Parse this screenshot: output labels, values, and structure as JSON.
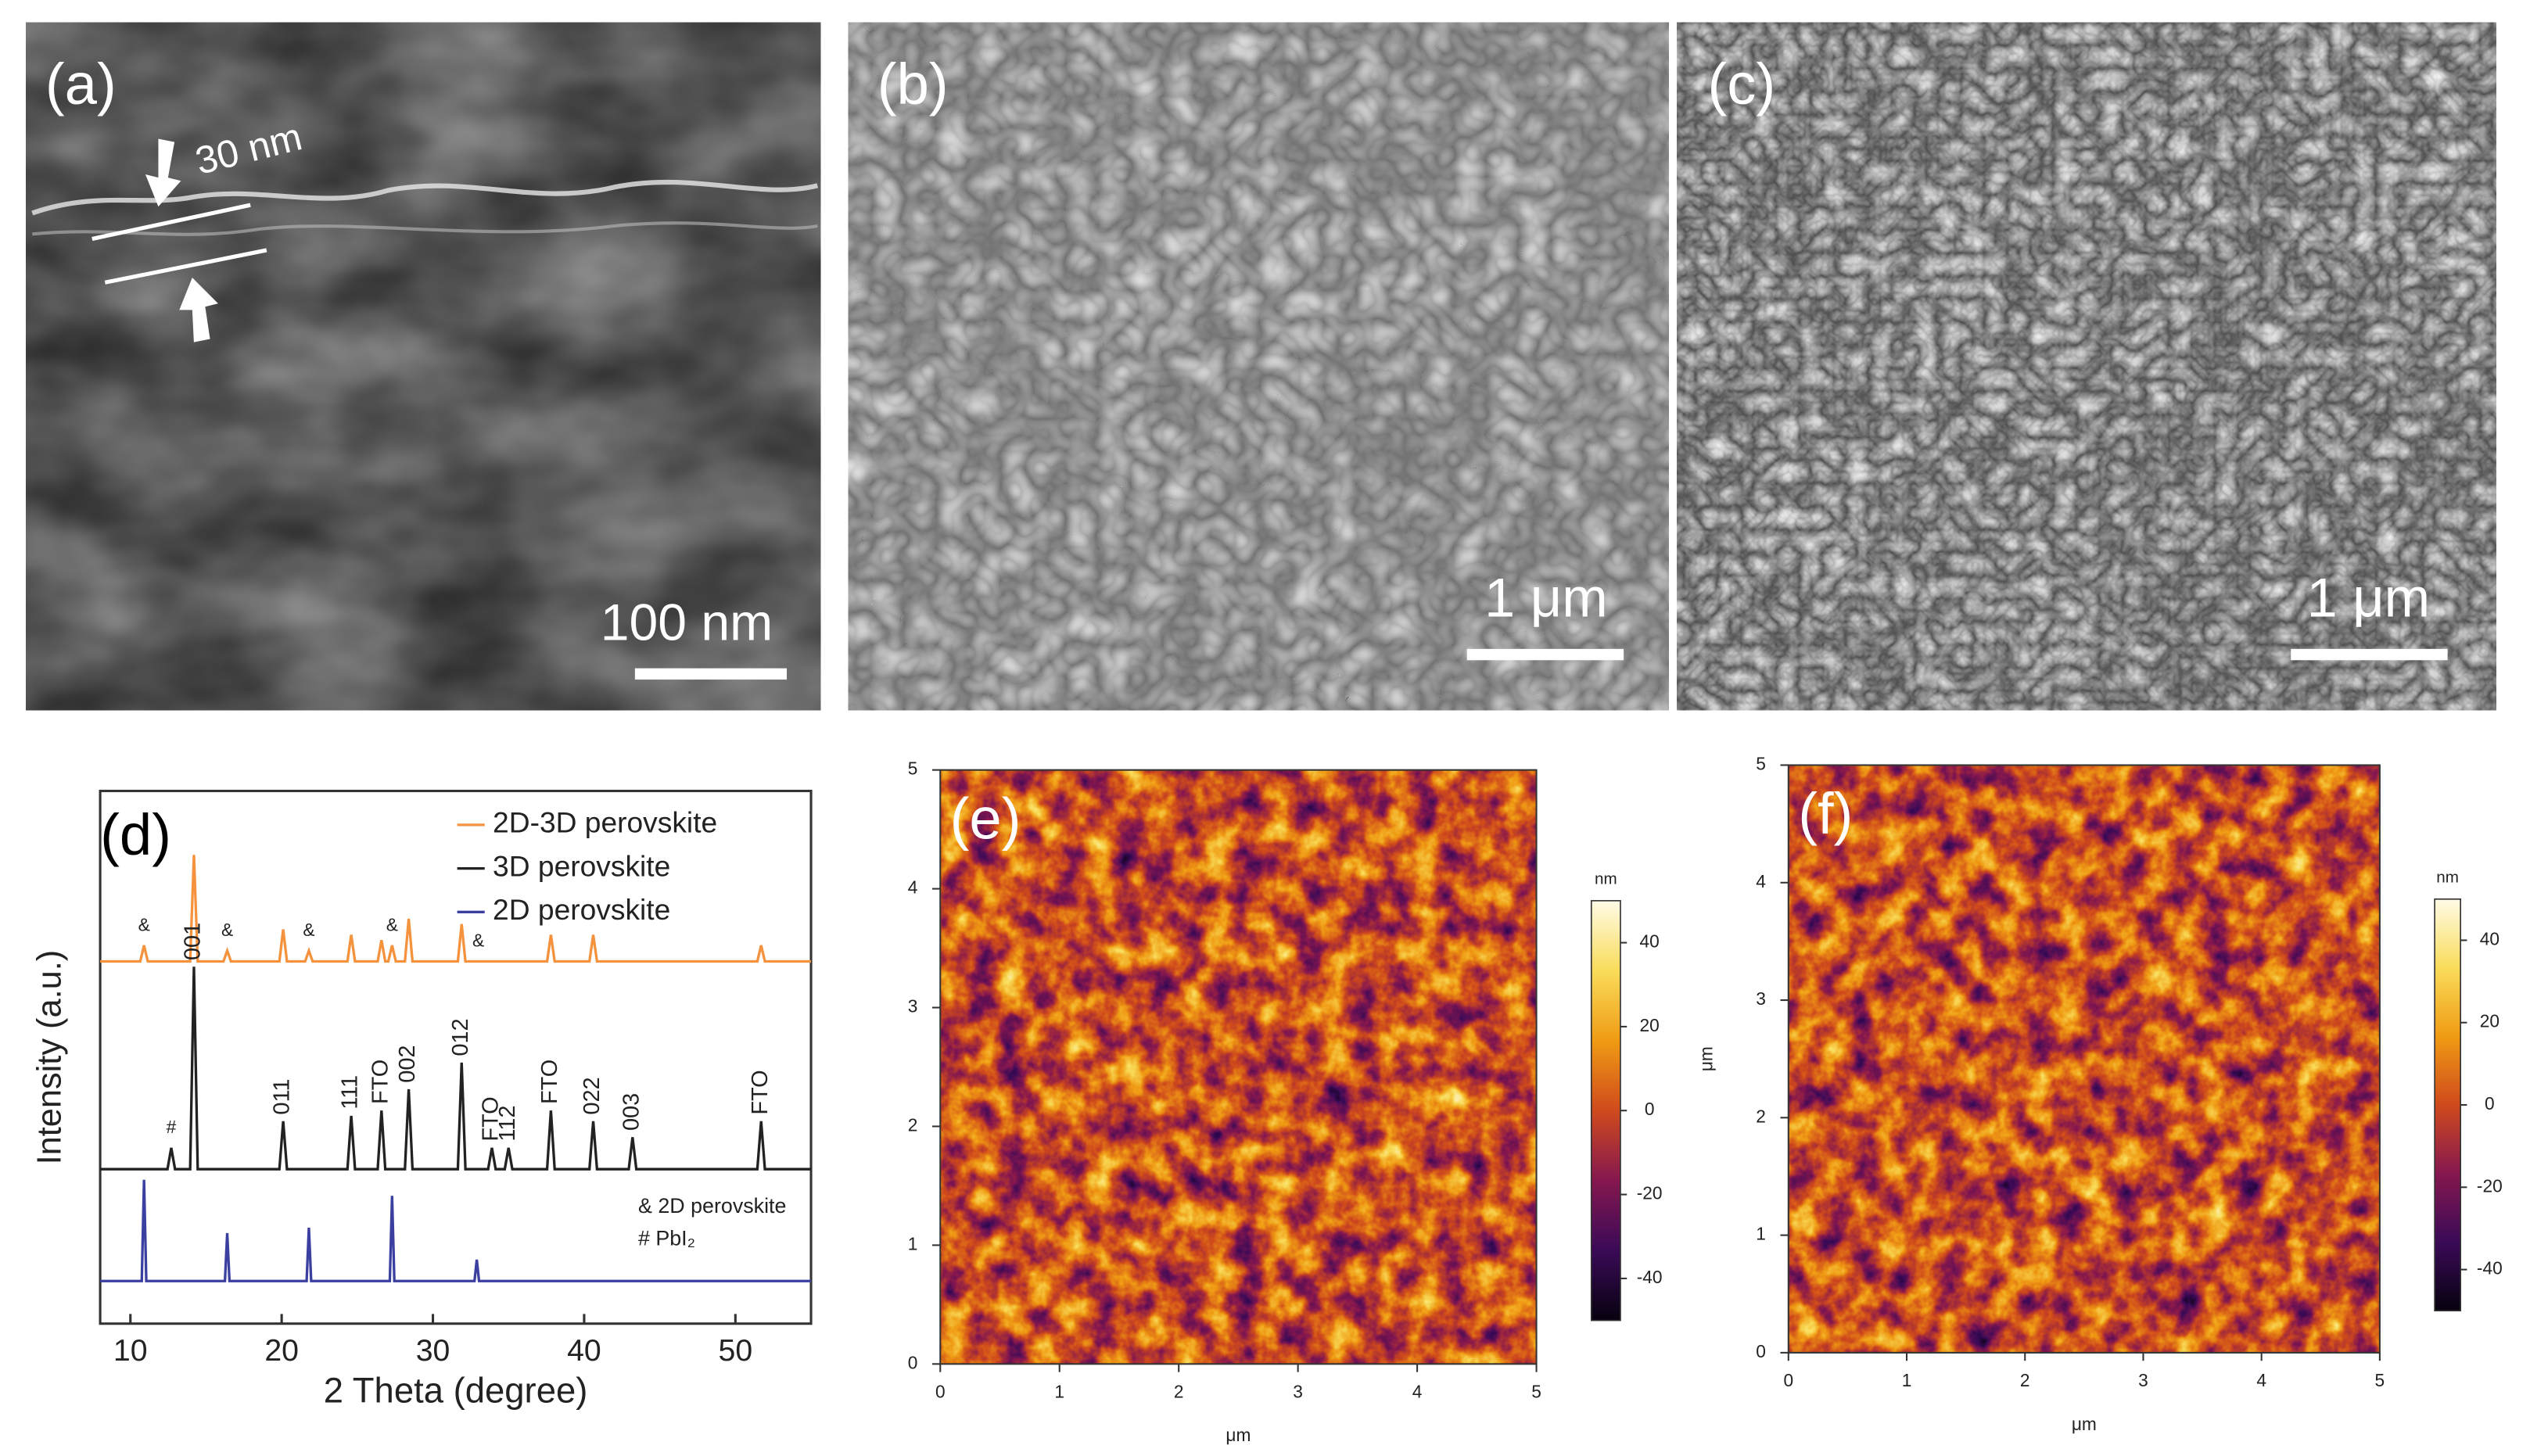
{
  "panels": {
    "a": {
      "label": "(a)",
      "thickness": "30 nm",
      "scale_bar": "100 nm"
    },
    "b": {
      "label": "(b)",
      "scale_bar": "1 μm"
    },
    "c": {
      "label": "(c)",
      "scale_bar": "1 μm"
    }
  },
  "chart_data": [
    {
      "type": "line",
      "panel_label": "(d)",
      "x_label": "2 Theta (degree)",
      "y_label": "Intensity (a.u.)",
      "xlim": [
        8,
        55
      ],
      "xticks": [
        10,
        20,
        30,
        40,
        50
      ],
      "ylim": [
        0,
        100
      ],
      "legend": "upper right",
      "notes": [
        "& 2D perovskite",
        "# PbI₂"
      ],
      "series": [
        {
          "name": "2D-3D perovskite",
          "color": "#f5923e",
          "x": [
            8,
            10.65,
            10.9,
            11.15,
            13.95,
            14.2,
            14.45,
            16.15,
            16.4,
            16.65,
            19.85,
            20.1,
            20.35,
            21.55,
            21.8,
            22.05,
            24.35,
            24.6,
            24.85,
            26.35,
            26.6,
            26.85,
            27.05,
            27.3,
            27.55,
            28.15,
            28.4,
            28.65,
            31.65,
            31.9,
            32.15,
            37.55,
            37.8,
            38.05,
            40.35,
            40.6,
            40.85,
            51.45,
            51.7,
            51.95,
            55
          ],
          "values": [
            68,
            68,
            71,
            68,
            68,
            88,
            68,
            68,
            70,
            68,
            68,
            74,
            68,
            68,
            70,
            68,
            68,
            73,
            68,
            68,
            72,
            68,
            68,
            71,
            68,
            68,
            76,
            68,
            68,
            75,
            68,
            68,
            73,
            68,
            68,
            73,
            68,
            68,
            71,
            68,
            68
          ],
          "peak_labels": [
            {
              "x": 10.9,
              "text": "&"
            },
            {
              "x": 16.4,
              "text": "&"
            },
            {
              "x": 21.8,
              "text": "&"
            },
            {
              "x": 27.3,
              "text": "&"
            },
            {
              "x": 33,
              "text": "&"
            }
          ]
        },
        {
          "name": "3D perovskite",
          "color": "#222222",
          "x": [
            8,
            12.45,
            12.7,
            12.95,
            13.95,
            14.2,
            14.45,
            19.85,
            20.1,
            20.35,
            24.35,
            24.6,
            24.85,
            26.35,
            26.6,
            26.85,
            28.15,
            28.4,
            28.65,
            31.65,
            31.9,
            32.15,
            33.65,
            33.9,
            34.15,
            34.75,
            35.0,
            35.25,
            37.55,
            37.8,
            38.05,
            40.35,
            40.6,
            40.85,
            42.95,
            43.2,
            43.45,
            51.45,
            51.7,
            51.95,
            55
          ],
          "values": [
            29,
            29,
            33,
            29,
            29,
            67,
            29,
            29,
            38,
            29,
            29,
            39,
            29,
            29,
            40,
            29,
            29,
            44,
            29,
            29,
            49,
            29,
            29,
            33,
            29,
            29,
            33,
            29,
            29,
            40,
            29,
            29,
            38,
            29,
            29,
            35,
            29,
            29,
            38,
            29,
            29
          ],
          "peak_labels": [
            {
              "x": 12.7,
              "text": "#"
            },
            {
              "x": 14.2,
              "text": "001"
            },
            {
              "x": 20.1,
              "text": "011"
            },
            {
              "x": 24.6,
              "text": "111"
            },
            {
              "x": 26.6,
              "text": "FTO"
            },
            {
              "x": 28.4,
              "text": "002"
            },
            {
              "x": 31.9,
              "text": "012"
            },
            {
              "x": 33.9,
              "text": "FTO"
            },
            {
              "x": 35.0,
              "text": "112"
            },
            {
              "x": 37.8,
              "text": "FTO"
            },
            {
              "x": 40.6,
              "text": "022"
            },
            {
              "x": 43.2,
              "text": "003"
            },
            {
              "x": 51.7,
              "text": "FTO"
            }
          ]
        },
        {
          "name": "2D perovskite",
          "color": "#3b3fa0",
          "x": [
            8,
            10.75,
            10.9,
            11.05,
            16.25,
            16.4,
            16.55,
            21.65,
            21.8,
            21.95,
            27.15,
            27.3,
            27.45,
            32.75,
            32.9,
            33.05,
            55
          ],
          "values": [
            8,
            8,
            27,
            8,
            8,
            17,
            8,
            8,
            18,
            8,
            8,
            24,
            8,
            8,
            12,
            8,
            8
          ]
        }
      ]
    },
    {
      "type": "heatmap",
      "panel_label": "(e)",
      "x_label": "μm",
      "xlim": [
        0,
        5
      ],
      "xticks": [
        0,
        1,
        2,
        3,
        4,
        5
      ],
      "ylim": [
        0,
        5
      ],
      "yticks": [
        0,
        1,
        2,
        3,
        4,
        5
      ],
      "colormap": [
        "#07020f",
        "#3a0a57",
        "#85174f",
        "#cf4a1c",
        "#f09b14",
        "#f9dc5a",
        "#fffbe6"
      ],
      "colorbar": {
        "label": "nm",
        "lim": [
          -50,
          50
        ],
        "ticks": [
          -40,
          -20,
          0,
          20,
          40
        ]
      }
    },
    {
      "type": "heatmap",
      "panel_label": "(f)",
      "x_label": "μm",
      "y_label": "μm",
      "xlim": [
        0,
        5
      ],
      "xticks": [
        0,
        1,
        2,
        3,
        4,
        5
      ],
      "ylim": [
        0,
        5
      ],
      "yticks": [
        0,
        1,
        2,
        3,
        4,
        5
      ],
      "colormap": [
        "#07020f",
        "#3a0a57",
        "#85174f",
        "#cf4a1c",
        "#f09b14",
        "#f9dc5a",
        "#fffbe6"
      ],
      "colorbar": {
        "label": "nm",
        "lim": [
          -50,
          50
        ],
        "ticks": [
          -40,
          -20,
          0,
          20,
          40
        ]
      }
    }
  ]
}
